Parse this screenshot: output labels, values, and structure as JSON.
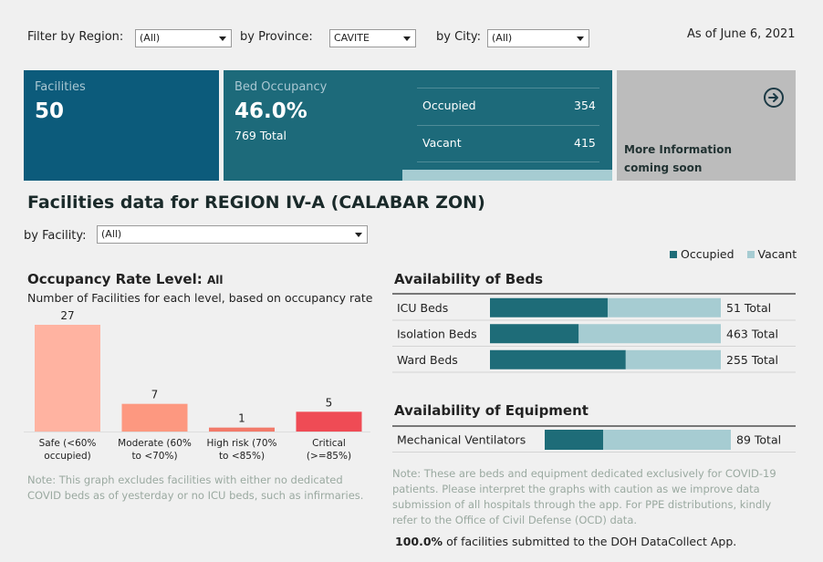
{
  "filters": {
    "region_label": "Filter by Region:",
    "region_value": "(All)",
    "province_label": "by Province:",
    "province_value": "CAVITE",
    "city_label": "by City:",
    "city_value": "(All)",
    "as_of": "As of June 6, 2021"
  },
  "cards": {
    "facilities_label": "Facilities",
    "facilities_value": "50",
    "bed_label": "Bed Occupancy",
    "bed_value": "46.0%",
    "bed_total": "769 Total",
    "occupied_label": "Occupied",
    "occupied_value": "354",
    "vacant_label": "Vacant",
    "vacant_value": "415",
    "more_info": "More Information coming soon",
    "arrow_icon": "arrow-right-circle-icon"
  },
  "section": {
    "title": "Facilities data for REGION IV-A (CALABAR ZON)",
    "facility_label": "by Facility:",
    "facility_value": "(All)"
  },
  "legend": {
    "occupied": "Occupied",
    "vacant": "Vacant",
    "occupied_color": "#1e6c78",
    "vacant_color": "#a6ccd2"
  },
  "occupancy": {
    "title": "Occupancy Rate Level:",
    "title_filter": "All",
    "subtitle": "Number of Facilities for each level, based on occupancy rate",
    "note": "Note: This graph excludes facilities with either no dedicated COVID beds as of yesterday or no ICU beds, such as infirmaries."
  },
  "beds": {
    "title": "Availability of Beds"
  },
  "equipment": {
    "title": "Availability of Equipment"
  },
  "footer": {
    "note": "Note: These are beds and equipment dedicated exclusively for COVID-19 patients. Please interpret the graphs with caution as we improve data submission of all hospitals through the app. For PPE distributions, kindly refer to the Office of Civil Defense (OCD) data.",
    "submitted_pct": "100.0%",
    "submitted_text": "of facilities submitted to the DOH DataCollect App."
  },
  "chart_data": [
    {
      "type": "bar",
      "categories": [
        "Safe (<60% occupied)",
        "Moderate (60% to <70%)",
        "High risk (70% to <85%)",
        "Critical (>=85%)"
      ],
      "values": [
        27,
        7,
        1,
        5
      ],
      "colors": [
        "#ffb3a1",
        "#fd9880",
        "#f27a6a",
        "#ef4b55"
      ]
    },
    {
      "type": "bar",
      "orientation": "horizontal-stacked",
      "categories": [
        "ICU Beds",
        "Isolation Beds",
        "Ward Beds"
      ],
      "series": [
        {
          "name": "Occupied",
          "values": [
            26,
            178,
            150
          ]
        },
        {
          "name": "Vacant",
          "values": [
            25,
            285,
            105
          ]
        }
      ],
      "totals": [
        "51 Total",
        "463 Total",
        "255 Total"
      ]
    },
    {
      "type": "bar",
      "orientation": "horizontal-stacked",
      "categories": [
        "Mechanical Ventilators"
      ],
      "series": [
        {
          "name": "Occupied",
          "values": [
            28
          ]
        },
        {
          "name": "Vacant",
          "values": [
            61
          ]
        }
      ],
      "totals": [
        "89 Total"
      ]
    }
  ]
}
